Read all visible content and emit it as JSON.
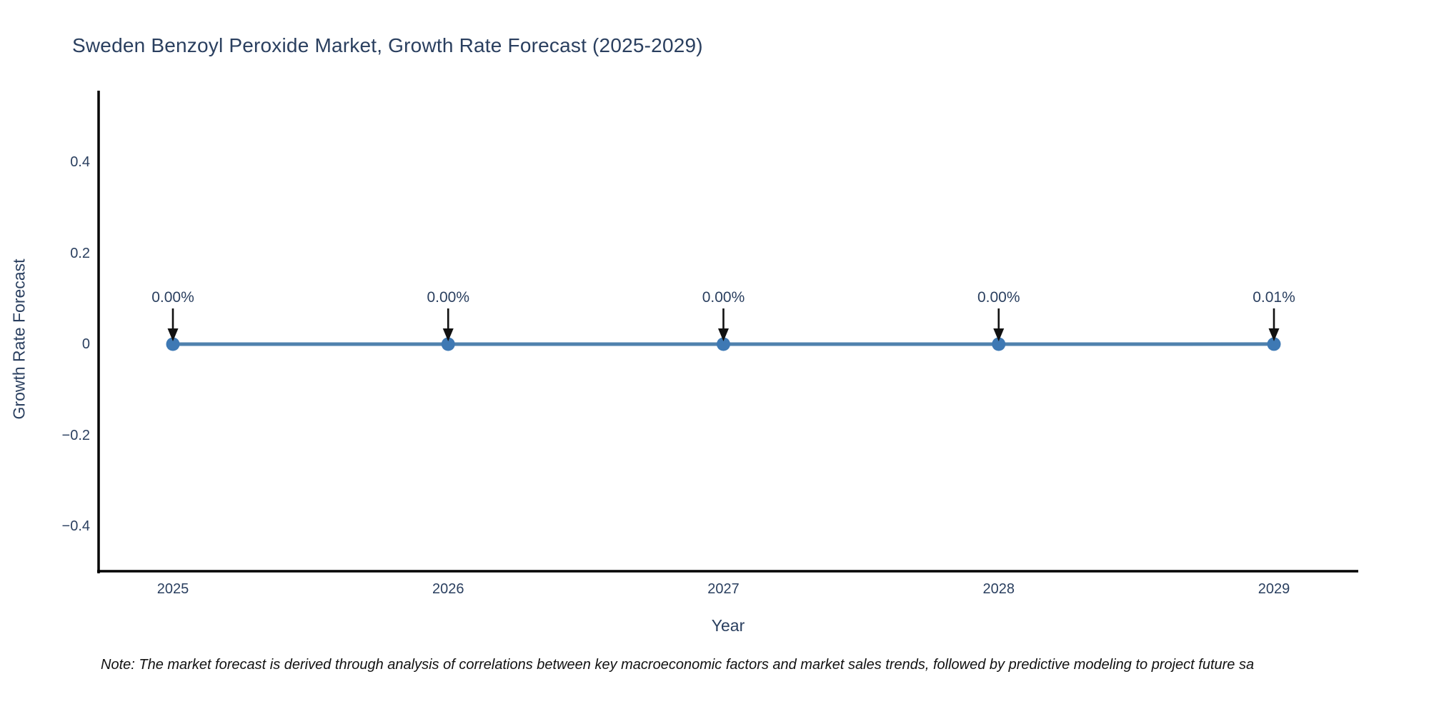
{
  "chart": {
    "title": "Sweden Benzoyl Peroxide Market, Growth Rate Forecast (2025-2029)",
    "note": "Note: The market forecast is derived through analysis of correlations between key macroeconomic factors and market sales trends, followed by predictive modeling to project future sa"
  },
  "chart_data": {
    "type": "line",
    "title": "Sweden Benzoyl Peroxide Market, Growth Rate Forecast (2025-2029)",
    "xlabel": "Year",
    "ylabel": "Growth Rate Forecast",
    "x": [
      2025,
      2026,
      2027,
      2028,
      2029
    ],
    "series": [
      {
        "name": "Growth Rate Forecast",
        "values_percent": [
          0.0,
          0.0,
          0.0,
          0.0,
          0.01
        ]
      }
    ],
    "point_labels": [
      "0.00%",
      "0.00%",
      "0.00%",
      "0.00%",
      "0.01%"
    ],
    "xtick_labels": [
      "2025",
      "2026",
      "2027",
      "2028",
      "2029"
    ],
    "yticks": [
      0.4,
      0.2,
      0,
      -0.2,
      -0.4
    ],
    "ytick_labels": [
      "0.4",
      "0.2",
      "0",
      "−0.2",
      "−0.4"
    ],
    "ylim": [
      -0.5,
      0.55
    ],
    "grid": false,
    "legend": "none",
    "colors": {
      "line": "#4f81ad",
      "marker": "#3e79b4",
      "arrow": "#111111",
      "axis": "#000000",
      "text": "#2a3f5f"
    }
  }
}
